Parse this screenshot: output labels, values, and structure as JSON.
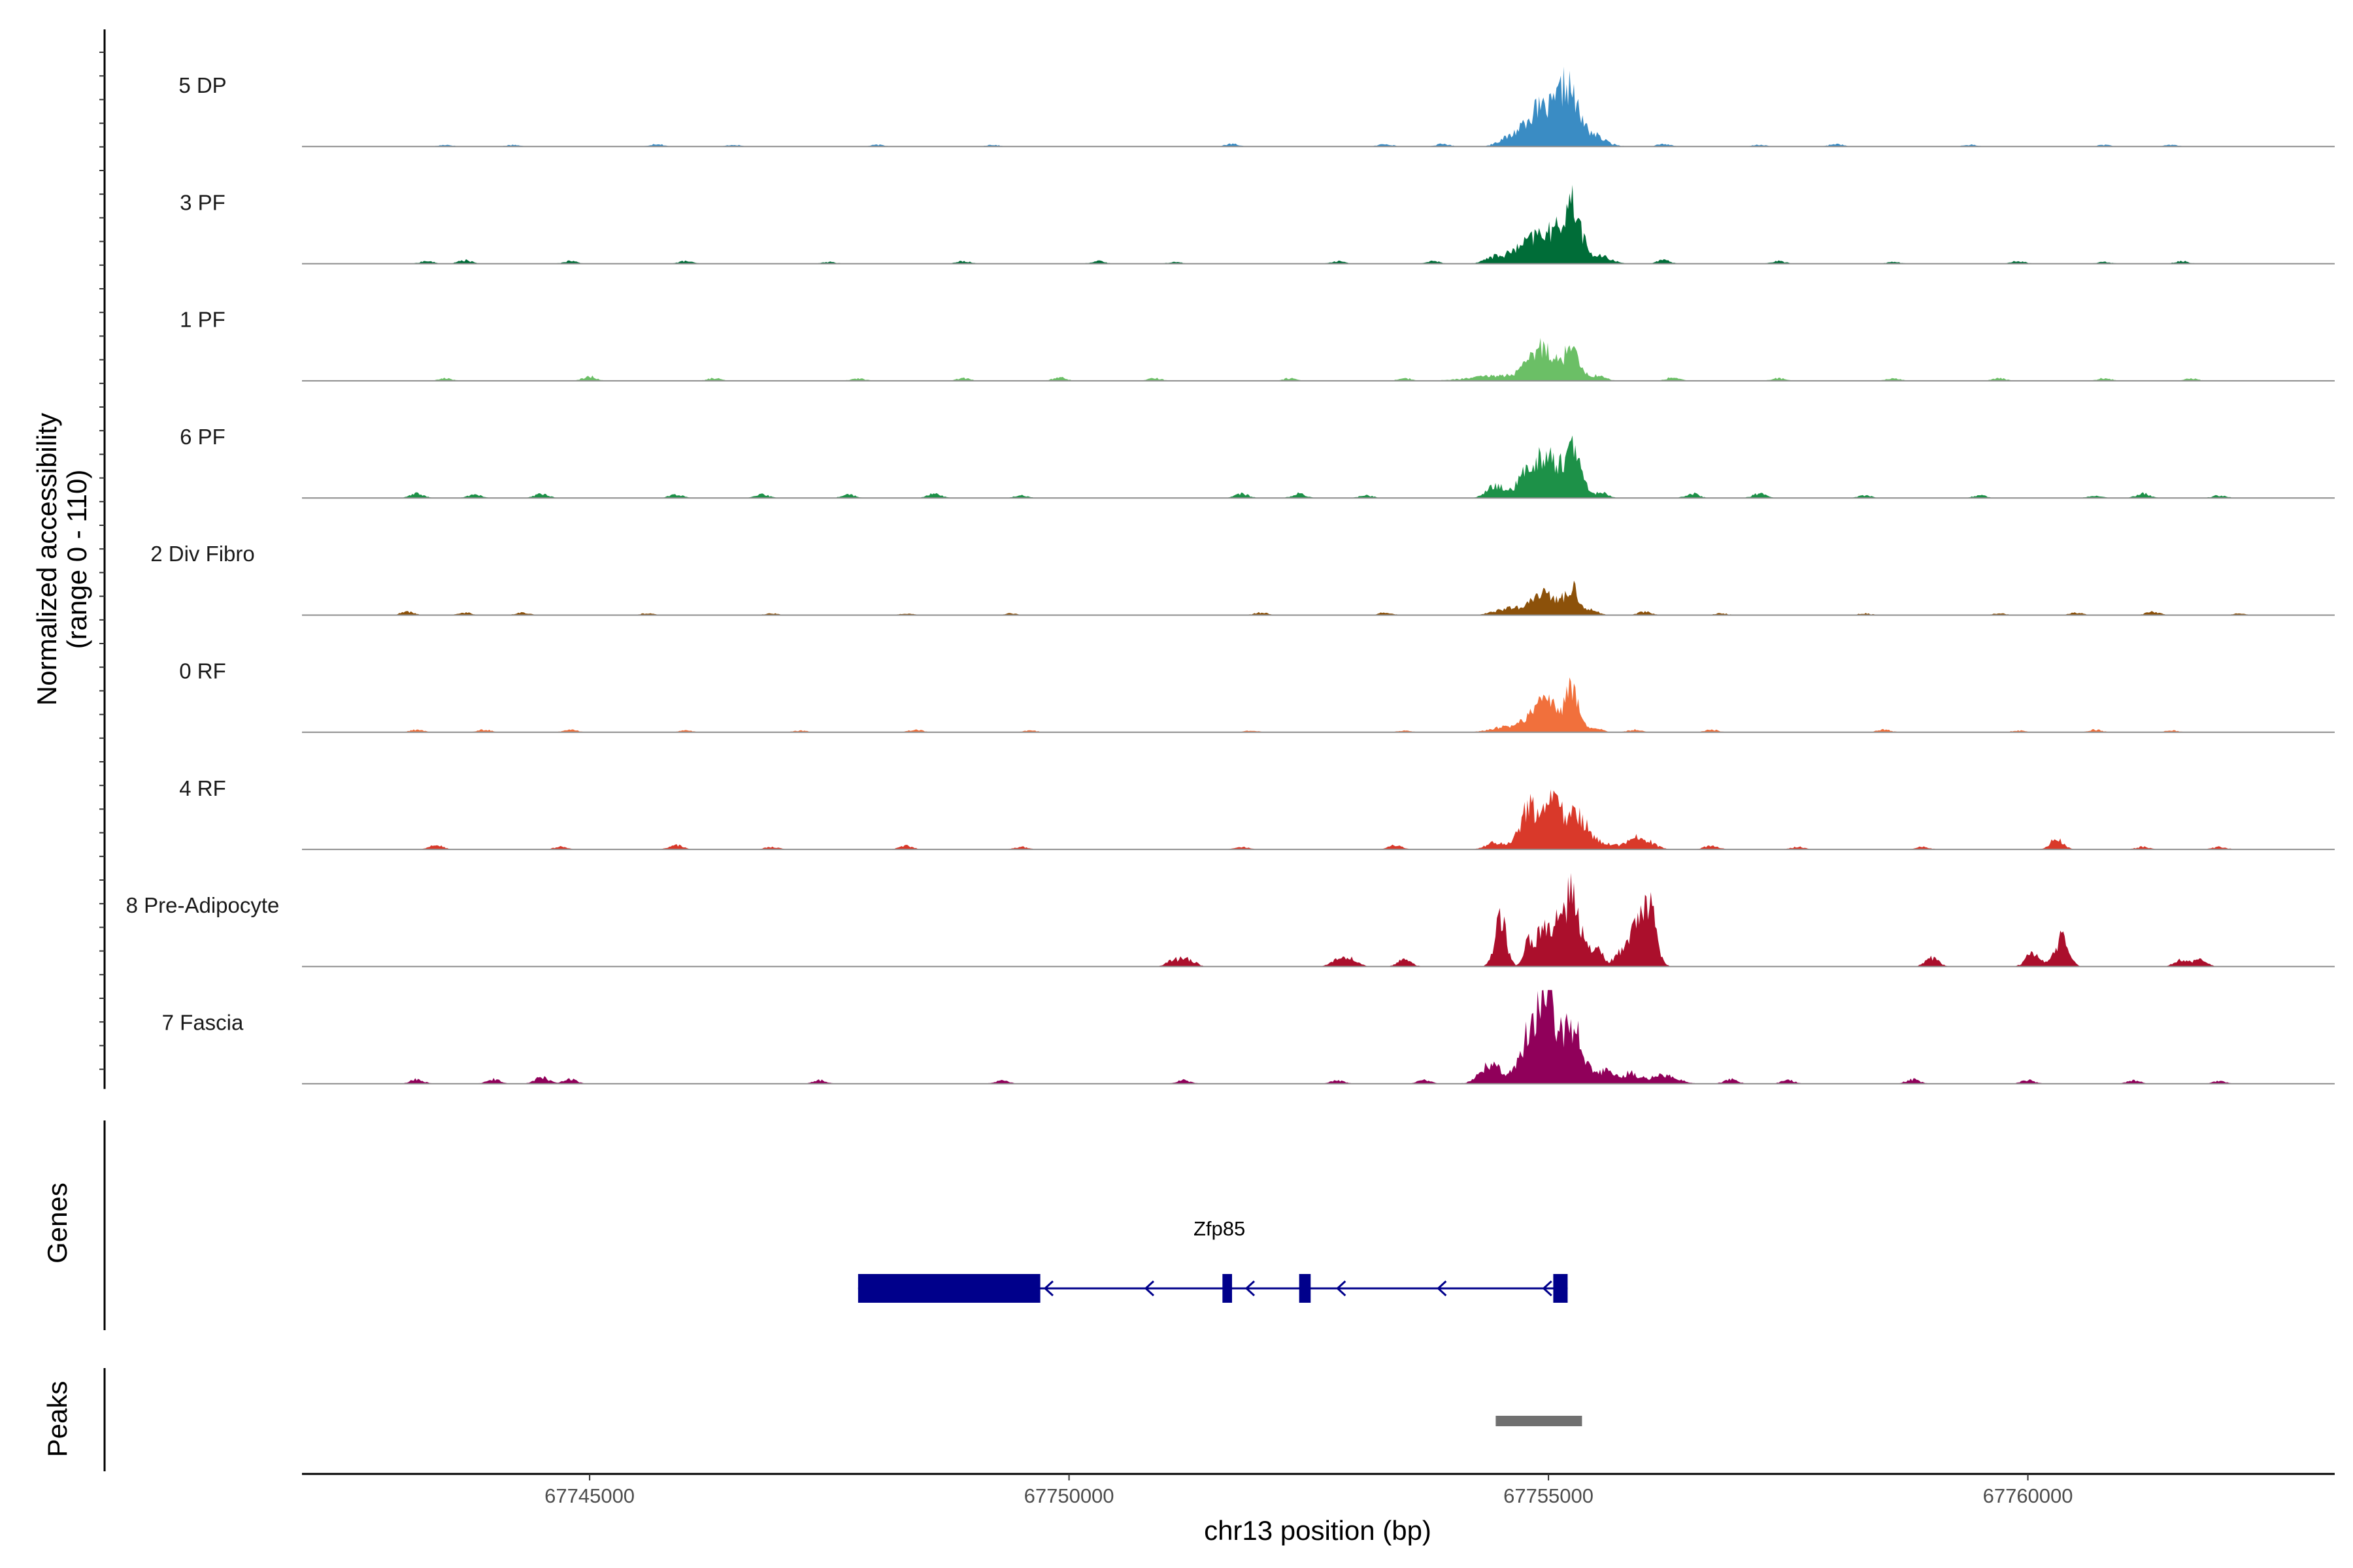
{
  "chart_data": {
    "type": "area",
    "title": "",
    "xlabel": "chr13 position (bp)",
    "ylabel_lines": [
      "Normalized accessibility",
      "(range 0 - 110)"
    ],
    "y_range": [
      0,
      110
    ],
    "x_range": [
      67742000,
      67763200
    ],
    "x_ticks": [
      67745000,
      67750000,
      67755000,
      67760000
    ],
    "x_tick_labels": [
      "67745000",
      "67750000",
      "67755000",
      "67760000"
    ],
    "tracks": [
      {
        "name": "5 DP",
        "color": "#3a8cc4",
        "peaks": [
          [
            67754800,
            160,
            20
          ],
          [
            67755000,
            170,
            32
          ],
          [
            67755200,
            90,
            48
          ],
          [
            67755400,
            150,
            16
          ]
        ],
        "background": [
          [
            67743500,
            2
          ],
          [
            67744200,
            2
          ],
          [
            67745700,
            3
          ],
          [
            67746500,
            2
          ],
          [
            67748000,
            2
          ],
          [
            67749200,
            2
          ],
          [
            67751700,
            3
          ],
          [
            67753300,
            3
          ],
          [
            67753900,
            3
          ],
          [
            67754500,
            4
          ],
          [
            67756200,
            3
          ],
          [
            67757200,
            2
          ],
          [
            67758000,
            3
          ],
          [
            67759400,
            2
          ],
          [
            67760800,
            2
          ],
          [
            67761500,
            2
          ]
        ]
      },
      {
        "name": "3 PF",
        "color": "#006d38",
        "peaks": [
          [
            67754700,
            200,
            12
          ],
          [
            67755000,
            180,
            32
          ],
          [
            67755250,
            90,
            58
          ],
          [
            67755550,
            110,
            8
          ]
        ],
        "background": [
          [
            67743300,
            3
          ],
          [
            67743700,
            4
          ],
          [
            67744800,
            3
          ],
          [
            67746000,
            3
          ],
          [
            67747500,
            2
          ],
          [
            67748900,
            3
          ],
          [
            67750300,
            3
          ],
          [
            67751100,
            2
          ],
          [
            67752800,
            3
          ],
          [
            67753800,
            3
          ],
          [
            67754400,
            4
          ],
          [
            67756200,
            4
          ],
          [
            67757400,
            3
          ],
          [
            67758600,
            2
          ],
          [
            67759900,
            3
          ],
          [
            67760800,
            2
          ],
          [
            67761600,
            3
          ]
        ]
      },
      {
        "name": "1 PF",
        "color": "#6bbf66",
        "peaks": [
          [
            67754500,
            300,
            6
          ],
          [
            67754850,
            110,
            20
          ],
          [
            67755000,
            100,
            28
          ],
          [
            67755250,
            70,
            45
          ],
          [
            67755500,
            90,
            6
          ]
        ],
        "background": [
          [
            67743500,
            3
          ],
          [
            67745000,
            5
          ],
          [
            67746300,
            3
          ],
          [
            67747800,
            3
          ],
          [
            67748900,
            3
          ],
          [
            67749900,
            4
          ],
          [
            67750900,
            3
          ],
          [
            67752300,
            3
          ],
          [
            67753500,
            3
          ],
          [
            67756300,
            4
          ],
          [
            67757400,
            3
          ],
          [
            67758600,
            3
          ],
          [
            67759700,
            3
          ],
          [
            67760800,
            3
          ],
          [
            67761700,
            3
          ]
        ]
      },
      {
        "name": "6 PF",
        "color": "#1d9148",
        "peaks": [
          [
            67754450,
            90,
            14
          ],
          [
            67754800,
            110,
            32
          ],
          [
            67755000,
            100,
            42
          ],
          [
            67755250,
            90,
            55
          ],
          [
            67755550,
            70,
            6
          ]
        ],
        "background": [
          [
            67743200,
            5
          ],
          [
            67743800,
            4
          ],
          [
            67744500,
            5
          ],
          [
            67745900,
            4
          ],
          [
            67746800,
            4
          ],
          [
            67747700,
            4
          ],
          [
            67748600,
            5
          ],
          [
            67749500,
            3
          ],
          [
            67751800,
            5
          ],
          [
            67752400,
            5
          ],
          [
            67753100,
            3
          ],
          [
            67756500,
            5
          ],
          [
            67757200,
            5
          ],
          [
            67758300,
            3
          ],
          [
            67759500,
            3
          ],
          [
            67760700,
            3
          ],
          [
            67761200,
            5
          ],
          [
            67762000,
            3
          ]
        ]
      },
      {
        "name": "2 Div Fibro",
        "color": "#8c510a",
        "peaks": [
          [
            67754600,
            150,
            8
          ],
          [
            67754900,
            100,
            18
          ],
          [
            67755050,
            90,
            16
          ],
          [
            67755250,
            70,
            30
          ],
          [
            67755450,
            70,
            6
          ]
        ],
        "background": [
          [
            67743100,
            4
          ],
          [
            67743700,
            3
          ],
          [
            67744300,
            3
          ],
          [
            67745600,
            2
          ],
          [
            67746900,
            2
          ],
          [
            67748300,
            2
          ],
          [
            67749400,
            2
          ],
          [
            67752000,
            3
          ],
          [
            67753300,
            3
          ],
          [
            67756000,
            4
          ],
          [
            67756800,
            2
          ],
          [
            67758300,
            2
          ],
          [
            67759700,
            2
          ],
          [
            67760500,
            3
          ],
          [
            67761300,
            4
          ],
          [
            67762200,
            2
          ]
        ]
      },
      {
        "name": "0 RF",
        "color": "#f1703c",
        "peaks": [
          [
            67754550,
            150,
            6
          ],
          [
            67754850,
            110,
            20
          ],
          [
            67755000,
            90,
            32
          ],
          [
            67755250,
            70,
            55
          ],
          [
            67755500,
            60,
            5
          ]
        ],
        "background": [
          [
            67743200,
            3
          ],
          [
            67743900,
            3
          ],
          [
            67744800,
            3
          ],
          [
            67746000,
            2
          ],
          [
            67747200,
            2
          ],
          [
            67748400,
            3
          ],
          [
            67749600,
            2
          ],
          [
            67751900,
            2
          ],
          [
            67753500,
            2
          ],
          [
            67755900,
            3
          ],
          [
            67756700,
            3
          ],
          [
            67758500,
            3
          ],
          [
            67759900,
            2
          ],
          [
            67760700,
            3
          ],
          [
            67761500,
            2
          ]
        ]
      },
      {
        "name": "4 RF",
        "color": "#d9392a",
        "peaks": [
          [
            67754450,
            100,
            8
          ],
          [
            67754800,
            100,
            46
          ],
          [
            67755050,
            100,
            50
          ],
          [
            67755300,
            100,
            38
          ],
          [
            67755550,
            120,
            8
          ],
          [
            67755950,
            120,
            14
          ]
        ],
        "background": [
          [
            67743400,
            5
          ],
          [
            67744700,
            3
          ],
          [
            67745900,
            5
          ],
          [
            67746900,
            3
          ],
          [
            67748300,
            4
          ],
          [
            67749500,
            3
          ],
          [
            67751800,
            3
          ],
          [
            67753400,
            5
          ],
          [
            67756700,
            5
          ],
          [
            67757600,
            3
          ],
          [
            67758900,
            3
          ],
          [
            67760300,
            12
          ],
          [
            67761200,
            3
          ],
          [
            67762000,
            3
          ]
        ]
      },
      {
        "name": "8 Pre-Adipocyte",
        "color": "#ab0f2c",
        "peaks": [
          [
            67754500,
            60,
            55
          ],
          [
            67754800,
            50,
            30
          ],
          [
            67754950,
            60,
            50
          ],
          [
            67755100,
            50,
            38
          ],
          [
            67755250,
            80,
            88
          ],
          [
            67755500,
            70,
            20
          ],
          [
            67755750,
            60,
            18
          ],
          [
            67755900,
            60,
            40
          ],
          [
            67756050,
            70,
            80
          ]
        ],
        "background": [
          [
            67751100,
            8
          ],
          [
            67751250,
            8
          ],
          [
            67752800,
            8
          ],
          [
            67752950,
            8
          ],
          [
            67753500,
            8
          ],
          [
            67759000,
            10
          ],
          [
            67760050,
            16
          ],
          [
            67760350,
            32
          ],
          [
            67761600,
            8
          ],
          [
            67761800,
            8
          ]
        ]
      },
      {
        "name": "7 Fascia",
        "color": "#90005a",
        "peaks": [
          [
            67754400,
            110,
            22
          ],
          [
            67754850,
            120,
            70
          ],
          [
            67755000,
            80,
            70
          ],
          [
            67755250,
            110,
            68
          ],
          [
            67755600,
            80,
            14
          ],
          [
            67755850,
            90,
            12
          ],
          [
            67756200,
            140,
            10
          ]
        ],
        "background": [
          [
            67743200,
            5
          ],
          [
            67744000,
            5
          ],
          [
            67744500,
            8
          ],
          [
            67744800,
            5
          ],
          [
            67747400,
            4
          ],
          [
            67749300,
            4
          ],
          [
            67751200,
            4
          ],
          [
            67752800,
            4
          ],
          [
            67753700,
            4
          ],
          [
            67756900,
            5
          ],
          [
            67757500,
            4
          ],
          [
            67758800,
            5
          ],
          [
            67760000,
            4
          ],
          [
            67761100,
            4
          ],
          [
            67762000,
            3
          ]
        ]
      }
    ],
    "gene_track": {
      "title": "Genes",
      "gene_name": "Zfp85",
      "color": "#00008b",
      "strand": "-",
      "span": [
        67747800,
        67755200
      ],
      "exons": [
        [
          67747800,
          67749700
        ],
        [
          67751600,
          67751700
        ],
        [
          67752400,
          67752520
        ],
        [
          67755050,
          67755200
        ]
      ],
      "arrows": [
        67749750,
        67750800,
        67751850,
        67752800,
        67753850,
        67754950
      ]
    },
    "peaks_track": {
      "title": "Peaks",
      "color": "#707070",
      "regions": [
        [
          67754450,
          67755350
        ]
      ]
    }
  }
}
